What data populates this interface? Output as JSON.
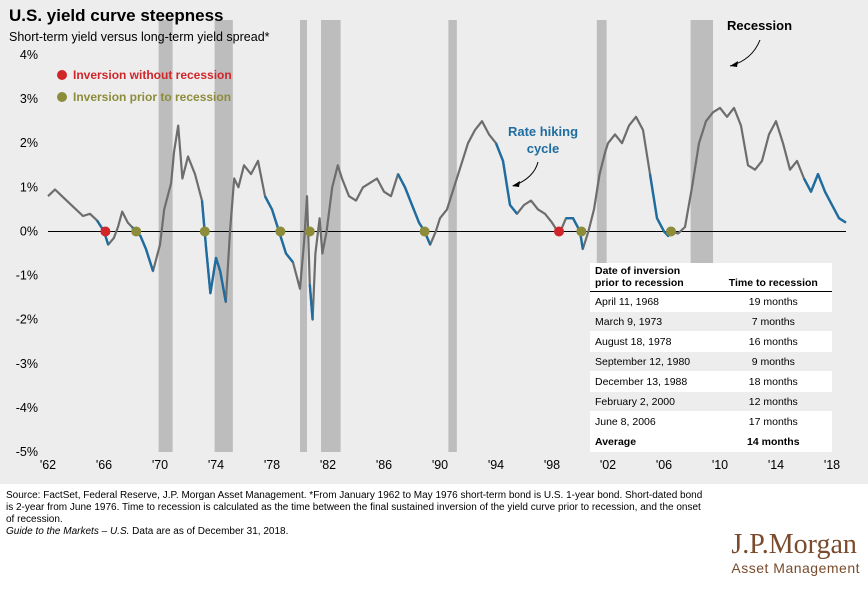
{
  "title": "U.S. yield curve steepness",
  "subtitle": "Short-term yield versus long-term yield spread*",
  "legend": [
    {
      "label": "Inversion without recession",
      "color": "#d0262a"
    },
    {
      "label": "Inversion prior to recession",
      "color": "#8c8c3a"
    }
  ],
  "annotations": {
    "recession": "Recession",
    "rate_hiking_line1": "Rate hiking",
    "rate_hiking_line2": "cycle"
  },
  "colors": {
    "spread_line": "#6d6d6d",
    "hiking_line": "#1f6da0",
    "recession_band": "#bdbdbd",
    "panel_bg": "#ededed",
    "annotation_blue": "#1f6da0"
  },
  "chart_data": {
    "type": "line",
    "title": "U.S. yield curve steepness",
    "subtitle": "Short-term yield versus long-term yield spread*",
    "yunit": "%",
    "ylim": [
      -5,
      4
    ],
    "yticks": [
      "4%",
      "3%",
      "2%",
      "1%",
      "0%",
      "-1%",
      "-2%",
      "-3%",
      "-4%",
      "-5%"
    ],
    "yticks_values": [
      4,
      3,
      2,
      1,
      0,
      -1,
      -2,
      -3,
      -4,
      -5
    ],
    "xlim": [
      1962,
      2019
    ],
    "xticks": [
      "'62",
      "'66",
      "'70",
      "'74",
      "'78",
      "'82",
      "'86",
      "'90",
      "'94",
      "'98",
      "'02",
      "'06",
      "'10",
      "'14",
      "'18"
    ],
    "xticks_values": [
      1962,
      1966,
      1970,
      1974,
      1978,
      1982,
      1986,
      1990,
      1994,
      1998,
      2002,
      2006,
      2010,
      2014,
      2018
    ],
    "recessions": [
      [
        1969.9,
        1970.9
      ],
      [
        1973.9,
        1975.2
      ],
      [
        1980.0,
        1980.5
      ],
      [
        1981.5,
        1982.9
      ],
      [
        1990.6,
        1991.2
      ],
      [
        2001.2,
        2001.9
      ],
      [
        2007.9,
        2009.5
      ]
    ],
    "series": [
      {
        "points": [
          [
            1962.0,
            0.8
          ],
          [
            1962.5,
            0.95
          ],
          [
            1963.0,
            0.8
          ],
          [
            1963.5,
            0.65
          ],
          [
            1964.0,
            0.5
          ],
          [
            1964.5,
            0.35
          ],
          [
            1965.0,
            0.4
          ],
          [
            1965.5,
            0.25
          ],
          [
            1966.0,
            0.0
          ],
          [
            1966.3,
            -0.3
          ],
          [
            1966.7,
            -0.15
          ],
          [
            1967.0,
            0.1
          ],
          [
            1967.3,
            0.45
          ],
          [
            1967.7,
            0.2
          ],
          [
            1968.0,
            0.1
          ],
          [
            1968.3,
            0.0
          ],
          [
            1968.6,
            -0.1
          ],
          [
            1969.0,
            -0.4
          ],
          [
            1969.5,
            -0.9
          ],
          [
            1970.0,
            -0.3
          ],
          [
            1970.3,
            0.5
          ],
          [
            1970.8,
            1.1
          ],
          [
            1971.0,
            1.8
          ],
          [
            1971.3,
            2.4
          ],
          [
            1971.6,
            1.2
          ],
          [
            1972.0,
            1.7
          ],
          [
            1972.5,
            1.3
          ],
          [
            1973.0,
            0.7
          ],
          [
            1973.3,
            -0.4
          ],
          [
            1973.6,
            -1.4
          ],
          [
            1974.0,
            -0.6
          ],
          [
            1974.3,
            -0.9
          ],
          [
            1974.7,
            -1.6
          ],
          [
            1975.0,
            0.0
          ],
          [
            1975.3,
            1.2
          ],
          [
            1975.6,
            1.0
          ],
          [
            1976.0,
            1.5
          ],
          [
            1976.5,
            1.3
          ],
          [
            1977.0,
            1.6
          ],
          [
            1977.5,
            0.8
          ],
          [
            1978.0,
            0.5
          ],
          [
            1978.5,
            0.0
          ],
          [
            1979.0,
            -0.5
          ],
          [
            1979.5,
            -0.7
          ],
          [
            1980.0,
            -1.3
          ],
          [
            1980.3,
            -0.2
          ],
          [
            1980.5,
            0.8
          ],
          [
            1980.7,
            -1.2
          ],
          [
            1980.9,
            -2.0
          ],
          [
            1981.1,
            -0.5
          ],
          [
            1981.4,
            0.3
          ],
          [
            1981.6,
            -0.5
          ],
          [
            1981.9,
            0.0
          ],
          [
            1982.3,
            1.0
          ],
          [
            1982.7,
            1.5
          ],
          [
            1983.0,
            1.2
          ],
          [
            1983.5,
            0.8
          ],
          [
            1984.0,
            0.7
          ],
          [
            1984.5,
            1.0
          ],
          [
            1985.0,
            1.1
          ],
          [
            1985.5,
            1.2
          ],
          [
            1986.0,
            0.9
          ],
          [
            1986.5,
            0.8
          ],
          [
            1987.0,
            1.3
          ],
          [
            1987.5,
            1.0
          ],
          [
            1988.0,
            0.6
          ],
          [
            1988.5,
            0.2
          ],
          [
            1988.9,
            0.0
          ],
          [
            1989.3,
            -0.3
          ],
          [
            1989.7,
            0.0
          ],
          [
            1990.0,
            0.3
          ],
          [
            1990.5,
            0.5
          ],
          [
            1991.0,
            1.0
          ],
          [
            1991.5,
            1.5
          ],
          [
            1992.0,
            2.0
          ],
          [
            1992.5,
            2.3
          ],
          [
            1993.0,
            2.5
          ],
          [
            1993.5,
            2.2
          ],
          [
            1994.0,
            2.0
          ],
          [
            1994.5,
            1.6
          ],
          [
            1995.0,
            0.6
          ],
          [
            1995.5,
            0.4
          ],
          [
            1996.0,
            0.6
          ],
          [
            1996.5,
            0.7
          ],
          [
            1997.0,
            0.5
          ],
          [
            1997.5,
            0.4
          ],
          [
            1998.0,
            0.2
          ],
          [
            1998.3,
            0.05
          ],
          [
            1998.6,
            0.0
          ],
          [
            1999.0,
            0.3
          ],
          [
            1999.5,
            0.3
          ],
          [
            2000.0,
            0.0
          ],
          [
            2000.2,
            -0.4
          ],
          [
            2000.6,
            0.0
          ],
          [
            2001.0,
            0.5
          ],
          [
            2001.4,
            1.3
          ],
          [
            2001.8,
            1.8
          ],
          [
            2002.0,
            2.0
          ],
          [
            2002.5,
            2.2
          ],
          [
            2003.0,
            2.0
          ],
          [
            2003.5,
            2.4
          ],
          [
            2004.0,
            2.6
          ],
          [
            2004.5,
            2.3
          ],
          [
            2005.0,
            1.3
          ],
          [
            2005.5,
            0.3
          ],
          [
            2006.0,
            0.0
          ],
          [
            2006.3,
            -0.1
          ],
          [
            2006.5,
            0.0
          ],
          [
            2007.0,
            -0.05
          ],
          [
            2007.5,
            0.1
          ],
          [
            2008.0,
            1.0
          ],
          [
            2008.5,
            2.0
          ],
          [
            2009.0,
            2.5
          ],
          [
            2009.5,
            2.7
          ],
          [
            2010.0,
            2.8
          ],
          [
            2010.5,
            2.6
          ],
          [
            2011.0,
            2.8
          ],
          [
            2011.5,
            2.4
          ],
          [
            2012.0,
            1.5
          ],
          [
            2012.5,
            1.4
          ],
          [
            2013.0,
            1.6
          ],
          [
            2013.5,
            2.2
          ],
          [
            2014.0,
            2.5
          ],
          [
            2014.5,
            2.0
          ],
          [
            2015.0,
            1.4
          ],
          [
            2015.5,
            1.6
          ],
          [
            2016.0,
            1.2
          ],
          [
            2016.5,
            0.9
          ],
          [
            2017.0,
            1.3
          ],
          [
            2017.5,
            0.9
          ],
          [
            2018.0,
            0.6
          ],
          [
            2018.5,
            0.3
          ],
          [
            2019.0,
            0.2
          ]
        ],
        "hiking_segments": [
          [
            1965.5,
            1966.4
          ],
          [
            1968.0,
            1969.9
          ],
          [
            1972.8,
            1974.8
          ],
          [
            1977.2,
            1979.8
          ],
          [
            1980.6,
            1981.0
          ],
          [
            1987.0,
            1989.3
          ],
          [
            1994.0,
            1995.5
          ],
          [
            1999.0,
            2000.3
          ],
          [
            2004.6,
            2006.5
          ],
          [
            2016.0,
            2019.0
          ]
        ]
      }
    ],
    "inversions_without_recession": [
      1966.1,
      1998.5
    ],
    "inversions_prior_to_recession": [
      1968.3,
      1973.2,
      1978.6,
      1980.7,
      1988.9,
      2000.1,
      2006.5
    ]
  },
  "table": {
    "header_col1_line1": "Date of inversion",
    "header_col1_line2": "prior to recession",
    "header_col2": "Time to recession",
    "rows": [
      {
        "date": "April 11, 1968",
        "time": "19 months"
      },
      {
        "date": "March 9, 1973",
        "time": "7 months"
      },
      {
        "date": "August 18, 1978",
        "time": "16 months"
      },
      {
        "date": "September 12, 1980",
        "time": "9 months"
      },
      {
        "date": "December 13, 1988",
        "time": "18 months"
      },
      {
        "date": "February 2, 2000",
        "time": "12 months"
      },
      {
        "date": "June 8, 2006",
        "time": "17 months"
      }
    ],
    "average_label": "Average",
    "average_value": "14 months"
  },
  "footnote": {
    "source": "Source: FactSet, Federal Reserve, J.P. Morgan Asset Management. *From January 1962 to May 1976 short-term bond is U.S. 1-year bond. Short-dated bond is 2-year from June 1976. Time to recession is calculated as the time between the final sustained inversion of the yield curve prior to recession, and the onset of recession.",
    "guide": "Guide to the Markets – U.S.",
    "asof": " Data are as of December 31, 2018."
  },
  "logo": {
    "main": "J.P.Morgan",
    "sub": "Asset Management"
  }
}
